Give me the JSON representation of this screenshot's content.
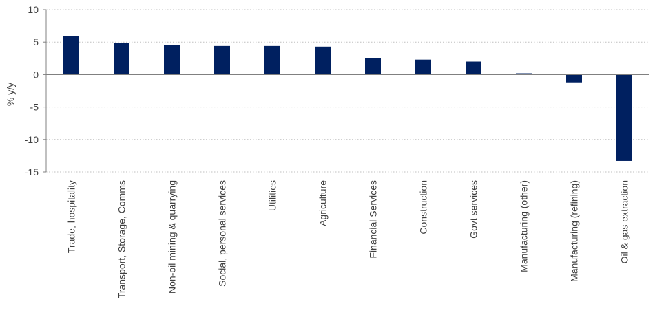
{
  "chart_data": {
    "type": "bar",
    "title": "",
    "xlabel": "",
    "ylabel": "% y/y",
    "ylim": [
      -15,
      10
    ],
    "yticks": [
      10,
      5,
      0,
      -5,
      -10,
      -15
    ],
    "grid": true,
    "legend": "none",
    "categories": [
      "Trade, hospitality",
      "Transport, Storage, Comms",
      "Non-oil mining & quarrying",
      "Social, personal services",
      "Utilities",
      "Agriculture",
      "Financial Services",
      "Construction",
      "Govt services",
      "Manufacturing (other)",
      "Manufacturing (refining)",
      "Oil & gas extraction"
    ],
    "series": [
      {
        "values": [
          5.9,
          4.9,
          4.5,
          4.4,
          4.4,
          4.3,
          2.5,
          2.3,
          2.0,
          0.2,
          -1.2,
          -13.3
        ],
        "color": "#002060"
      }
    ],
    "colors": {
      "bar": "#002060",
      "axis": "#808080",
      "grid": "#bfbfbf",
      "text": "#404040"
    }
  }
}
